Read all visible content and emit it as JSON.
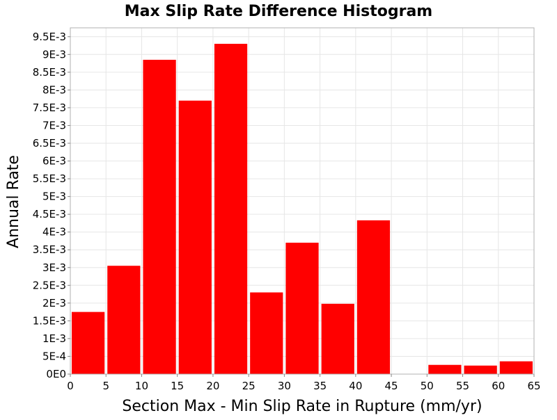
{
  "chart_data": {
    "type": "bar",
    "title": "Max Slip Rate Difference Histogram",
    "xlabel": "Section Max - Min Slip Rate in Rupture (mm/yr)",
    "ylabel": "Annual Rate",
    "xlim": [
      0,
      65
    ],
    "ylim": [
      0,
      0.00975
    ],
    "grid": true,
    "bar_color": "#ff0000",
    "x_ticks": [
      0,
      5,
      10,
      15,
      20,
      25,
      30,
      35,
      40,
      45,
      50,
      55,
      60,
      65
    ],
    "x_tick_labels": [
      "0",
      "5",
      "10",
      "15",
      "20",
      "25",
      "30",
      "35",
      "40",
      "45",
      "50",
      "55",
      "60",
      "65"
    ],
    "y_ticks": [
      0,
      0.0005,
      0.001,
      0.0015,
      0.002,
      0.0025,
      0.003,
      0.0035,
      0.004,
      0.0045,
      0.005,
      0.0055,
      0.006,
      0.0065,
      0.007,
      0.0075,
      0.008,
      0.0085,
      0.009,
      0.0095
    ],
    "y_tick_labels": [
      "0E0",
      "5E-4",
      "1E-3",
      "1.5E-3",
      "2E-3",
      "2.5E-3",
      "3E-3",
      "3.5E-3",
      "4E-3",
      "4.5E-3",
      "5E-3",
      "5.5E-3",
      "6E-3",
      "6.5E-3",
      "7E-3",
      "7.5E-3",
      "8E-3",
      "8.5E-3",
      "9E-3",
      "9.5E-3"
    ],
    "bins": [
      {
        "x0": 0,
        "x1": 5,
        "value": 0.00175
      },
      {
        "x0": 5,
        "x1": 10,
        "value": 0.00305
      },
      {
        "x0": 10,
        "x1": 15,
        "value": 0.00885
      },
      {
        "x0": 15,
        "x1": 20,
        "value": 0.0077
      },
      {
        "x0": 20,
        "x1": 25,
        "value": 0.0093
      },
      {
        "x0": 25,
        "x1": 30,
        "value": 0.0023
      },
      {
        "x0": 30,
        "x1": 35,
        "value": 0.0037
      },
      {
        "x0": 35,
        "x1": 40,
        "value": 0.00198
      },
      {
        "x0": 40,
        "x1": 45,
        "value": 0.00433
      },
      {
        "x0": 45,
        "x1": 50,
        "value": 0
      },
      {
        "x0": 50,
        "x1": 55,
        "value": 0.00026
      },
      {
        "x0": 55,
        "x1": 60,
        "value": 0.00024
      },
      {
        "x0": 60,
        "x1": 65,
        "value": 0.00036
      }
    ]
  }
}
